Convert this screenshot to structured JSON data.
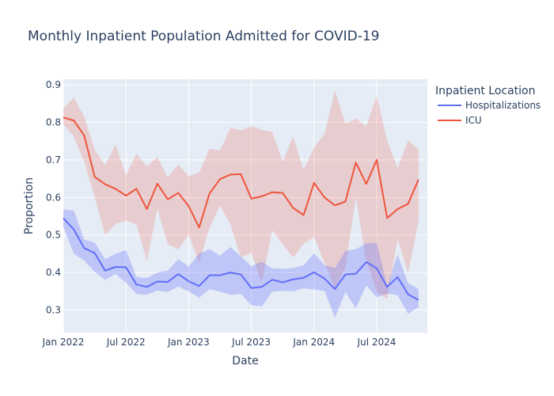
{
  "chart_data": {
    "type": "line",
    "title": "Monthly Inpatient Population Admitted for COVID-19",
    "xlabel": "Date",
    "ylabel": "Proportion",
    "x": [
      "2022-01",
      "2022-02",
      "2022-03",
      "2022-04",
      "2022-05",
      "2022-06",
      "2022-07",
      "2022-08",
      "2022-09",
      "2022-10",
      "2022-11",
      "2022-12",
      "2023-01",
      "2023-02",
      "2023-03",
      "2023-04",
      "2023-05",
      "2023-06",
      "2023-07",
      "2023-08",
      "2023-09",
      "2023-10",
      "2023-11",
      "2023-12",
      "2024-01",
      "2024-02",
      "2024-03",
      "2024-04",
      "2024-05",
      "2024-06",
      "2024-07",
      "2024-08",
      "2024-09",
      "2024-10",
      "2024-11"
    ],
    "x_ticks": [
      {
        "date": "2022-01",
        "label": "Jan 2022"
      },
      {
        "date": "2022-07",
        "label": "Jul 2022"
      },
      {
        "date": "2023-01",
        "label": "Jan 2023"
      },
      {
        "date": "2023-07",
        "label": "Jul 2023"
      },
      {
        "date": "2024-01",
        "label": "Jan 2024"
      },
      {
        "date": "2024-07",
        "label": "Jul 2024"
      }
    ],
    "ylim": [
      0.24,
      0.915
    ],
    "y_ticks": [
      0.3,
      0.4,
      0.5,
      0.6,
      0.7,
      0.8,
      0.9
    ],
    "y_tick_labels": [
      "0.3",
      "0.4",
      "0.5",
      "0.6",
      "0.7",
      "0.8",
      "0.9"
    ],
    "grid": true,
    "legend_title": "Inpatient Location",
    "legend_position": "top-right",
    "series": [
      {
        "name": "Hospitalizations",
        "color": "#636efa",
        "fill": "rgba(99,110,250,0.3)",
        "values": [
          0.545,
          0.515,
          0.465,
          0.452,
          0.405,
          0.415,
          0.414,
          0.368,
          0.362,
          0.376,
          0.375,
          0.396,
          0.377,
          0.364,
          0.393,
          0.393,
          0.4,
          0.395,
          0.359,
          0.362,
          0.381,
          0.374,
          0.382,
          0.386,
          0.401,
          0.384,
          0.356,
          0.395,
          0.397,
          0.428,
          0.411,
          0.362,
          0.388,
          0.342,
          0.327
        ],
        "upper": [
          0.568,
          0.565,
          0.488,
          0.48,
          0.436,
          0.45,
          0.46,
          0.388,
          0.385,
          0.4,
          0.405,
          0.436,
          0.416,
          0.451,
          0.462,
          0.445,
          0.468,
          0.443,
          0.417,
          0.429,
          0.411,
          0.41,
          0.412,
          0.419,
          0.451,
          0.42,
          0.412,
          0.458,
          0.462,
          0.478,
          0.48,
          0.363,
          0.448,
          0.372,
          0.356
        ],
        "lower": [
          0.522,
          0.45,
          0.432,
          0.402,
          0.381,
          0.396,
          0.373,
          0.343,
          0.341,
          0.352,
          0.348,
          0.363,
          0.35,
          0.333,
          0.356,
          0.349,
          0.341,
          0.343,
          0.313,
          0.31,
          0.349,
          0.351,
          0.35,
          0.358,
          0.355,
          0.351,
          0.28,
          0.348,
          0.305,
          0.366,
          0.334,
          0.344,
          0.34,
          0.29,
          0.308
        ]
      },
      {
        "name": "ICU",
        "color": "#ef553b",
        "fill": "rgba(239,85,59,0.2)",
        "values": [
          0.813,
          0.805,
          0.765,
          0.655,
          0.635,
          0.623,
          0.605,
          0.623,
          0.569,
          0.637,
          0.595,
          0.612,
          0.577,
          0.52,
          0.611,
          0.649,
          0.661,
          0.662,
          0.597,
          0.603,
          0.614,
          0.612,
          0.572,
          0.553,
          0.639,
          0.6,
          0.579,
          0.589,
          0.693,
          0.636,
          0.7,
          0.545,
          0.569,
          0.583,
          0.648
        ],
        "upper": [
          0.838,
          0.866,
          0.815,
          0.728,
          0.686,
          0.741,
          0.66,
          0.716,
          0.683,
          0.708,
          0.653,
          0.688,
          0.657,
          0.666,
          0.73,
          0.725,
          0.786,
          0.779,
          0.79,
          0.78,
          0.775,
          0.696,
          0.762,
          0.673,
          0.733,
          0.77,
          0.885,
          0.797,
          0.81,
          0.79,
          0.87,
          0.752,
          0.677,
          0.752,
          0.729
        ],
        "lower": [
          0.795,
          0.762,
          0.695,
          0.6,
          0.5,
          0.53,
          0.538,
          0.528,
          0.43,
          0.57,
          0.475,
          0.462,
          0.5,
          0.427,
          0.52,
          0.578,
          0.528,
          0.44,
          0.452,
          0.373,
          0.513,
          0.475,
          0.44,
          0.477,
          0.494,
          0.426,
          0.36,
          0.412,
          0.6,
          0.432,
          0.349,
          0.33,
          0.49,
          0.398,
          0.536
        ]
      }
    ]
  }
}
